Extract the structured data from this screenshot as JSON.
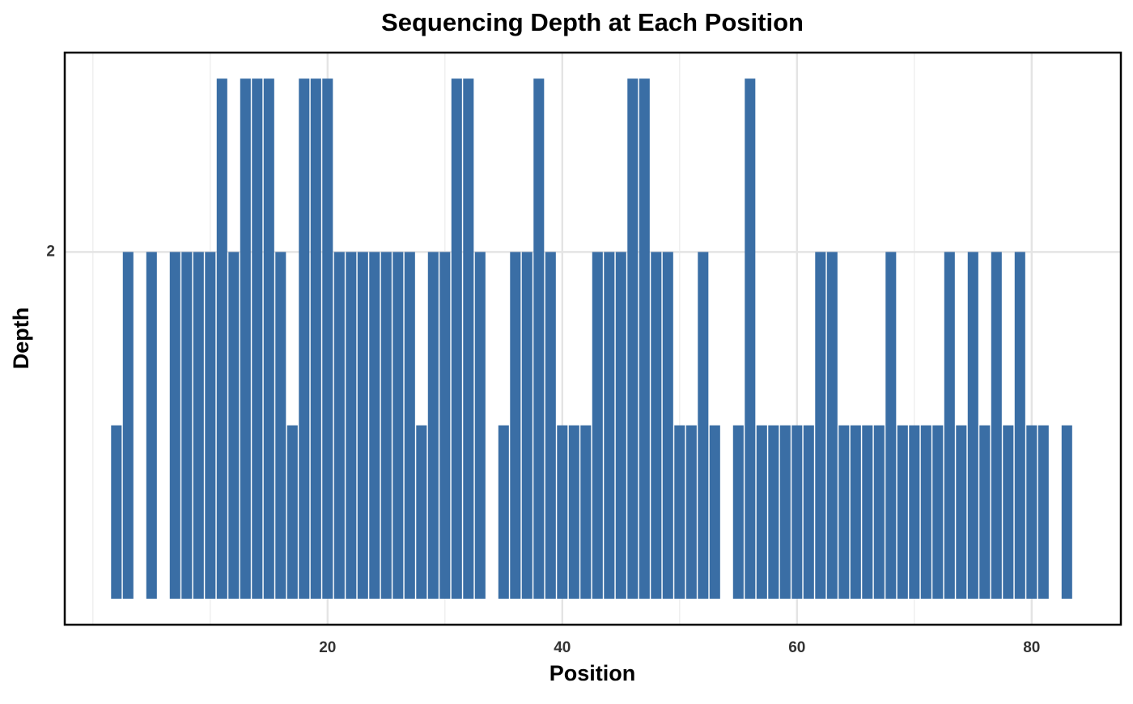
{
  "chart_data": {
    "type": "bar",
    "title": "Sequencing Depth at Each Position",
    "x_label": "Position",
    "y_label": "Depth",
    "x": [
      2,
      3,
      5,
      7,
      8,
      9,
      10,
      11,
      12,
      13,
      14,
      15,
      16,
      17,
      18,
      19,
      20,
      21,
      22,
      23,
      24,
      25,
      26,
      27,
      28,
      29,
      30,
      31,
      32,
      33,
      35,
      36,
      37,
      38,
      39,
      40,
      41,
      42,
      43,
      44,
      45,
      46,
      47,
      48,
      49,
      50,
      51,
      52,
      53,
      55,
      56,
      57,
      58,
      59,
      60,
      61,
      62,
      63,
      64,
      65,
      66,
      67,
      68,
      69,
      70,
      71,
      72,
      73,
      74,
      75,
      76,
      77,
      78,
      79,
      80,
      81,
      83
    ],
    "values": [
      1,
      2,
      2,
      2,
      2,
      2,
      2,
      3,
      2,
      3,
      3,
      3,
      2,
      1,
      3,
      3,
      3,
      2,
      2,
      2,
      2,
      2,
      2,
      2,
      1,
      2,
      2,
      3,
      3,
      2,
      1,
      2,
      2,
      3,
      2,
      1,
      1,
      1,
      2,
      2,
      2,
      3,
      3,
      2,
      2,
      1,
      1,
      2,
      1,
      1,
      3,
      1,
      1,
      1,
      1,
      1,
      2,
      2,
      1,
      1,
      1,
      1,
      2,
      1,
      1,
      1,
      1,
      2,
      1,
      2,
      1,
      2,
      1,
      2,
      1,
      1,
      1
    ],
    "color": "#3a6ea5",
    "xlim": [
      -2.4,
      87.6
    ],
    "xticks": [
      20,
      40,
      60,
      80
    ],
    "x_minor_ticks": [
      0,
      10,
      30,
      50,
      70
    ],
    "ylim": [
      -0.15,
      3.15
    ],
    "yticks": [
      2
    ],
    "grid": true
  }
}
